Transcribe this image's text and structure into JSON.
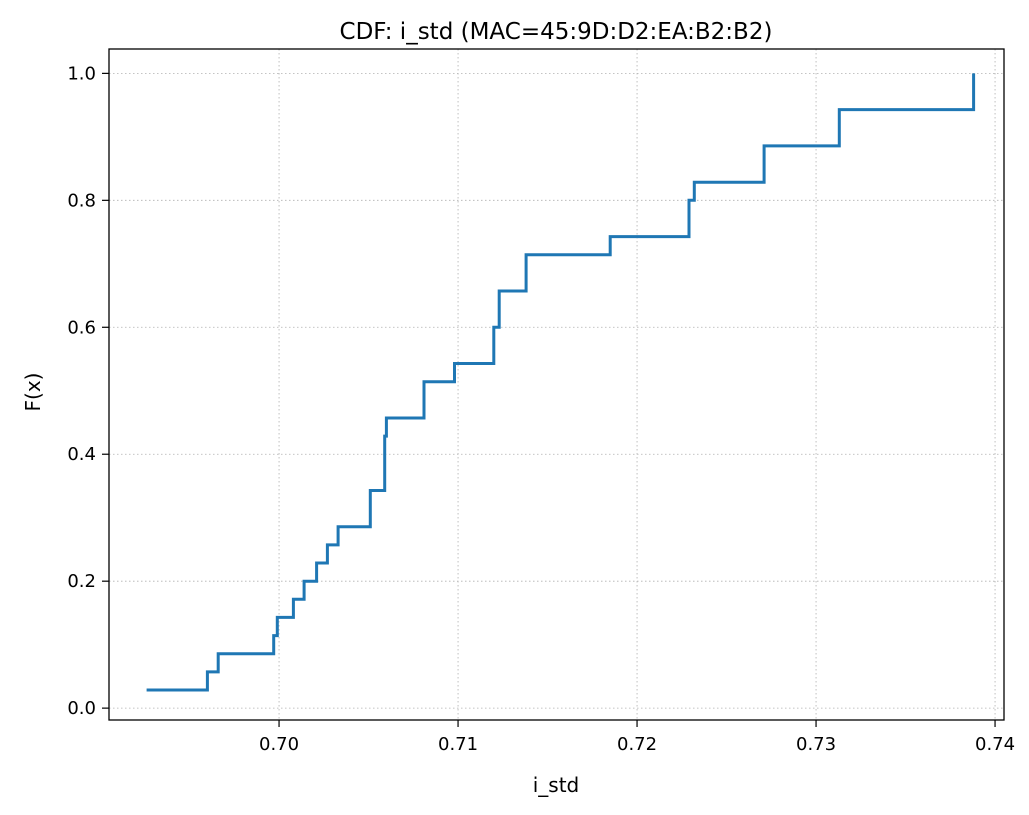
{
  "chart_data": {
    "type": "line",
    "subtype": "step-cdf",
    "title": "CDF: i_std (MAC=45:9D:D2:EA:B2:B2)",
    "xlabel": "i_std",
    "ylabel": "F(x)",
    "xlim": [
      0.6905,
      0.7405
    ],
    "ylim": [
      -0.0187,
      1.0384
    ],
    "xticks": [
      0.7,
      0.71,
      0.72,
      0.73,
      0.74
    ],
    "xtick_labels": [
      "0.70",
      "0.71",
      "0.72",
      "0.73",
      "0.74"
    ],
    "yticks": [
      0.0,
      0.2,
      0.4,
      0.6,
      0.8,
      1.0
    ],
    "ytick_labels": [
      "0.0",
      "0.2",
      "0.4",
      "0.6",
      "0.8",
      "1.0"
    ],
    "grid": true,
    "series": [
      {
        "color": "#1f77b4",
        "x": [
          0.6926,
          0.696,
          0.6966,
          0.6997,
          0.6999,
          0.7008,
          0.7014,
          0.7021,
          0.7027,
          0.7033,
          0.7051,
          0.7059,
          0.706,
          0.7081,
          0.7098,
          0.712,
          0.7123,
          0.7138,
          0.7185,
          0.7229,
          0.7232,
          0.7271,
          0.7313,
          0.7388
        ],
        "y": [
          0.0286,
          0.0571,
          0.0857,
          0.1143,
          0.1429,
          0.1714,
          0.2,
          0.2286,
          0.2571,
          0.2857,
          0.3429,
          0.4286,
          0.4571,
          0.5143,
          0.5429,
          0.6,
          0.6571,
          0.7143,
          0.7429,
          0.8,
          0.8286,
          0.8857,
          0.9429,
          0.9714
        ],
        "y_end": 1.0
      }
    ]
  }
}
